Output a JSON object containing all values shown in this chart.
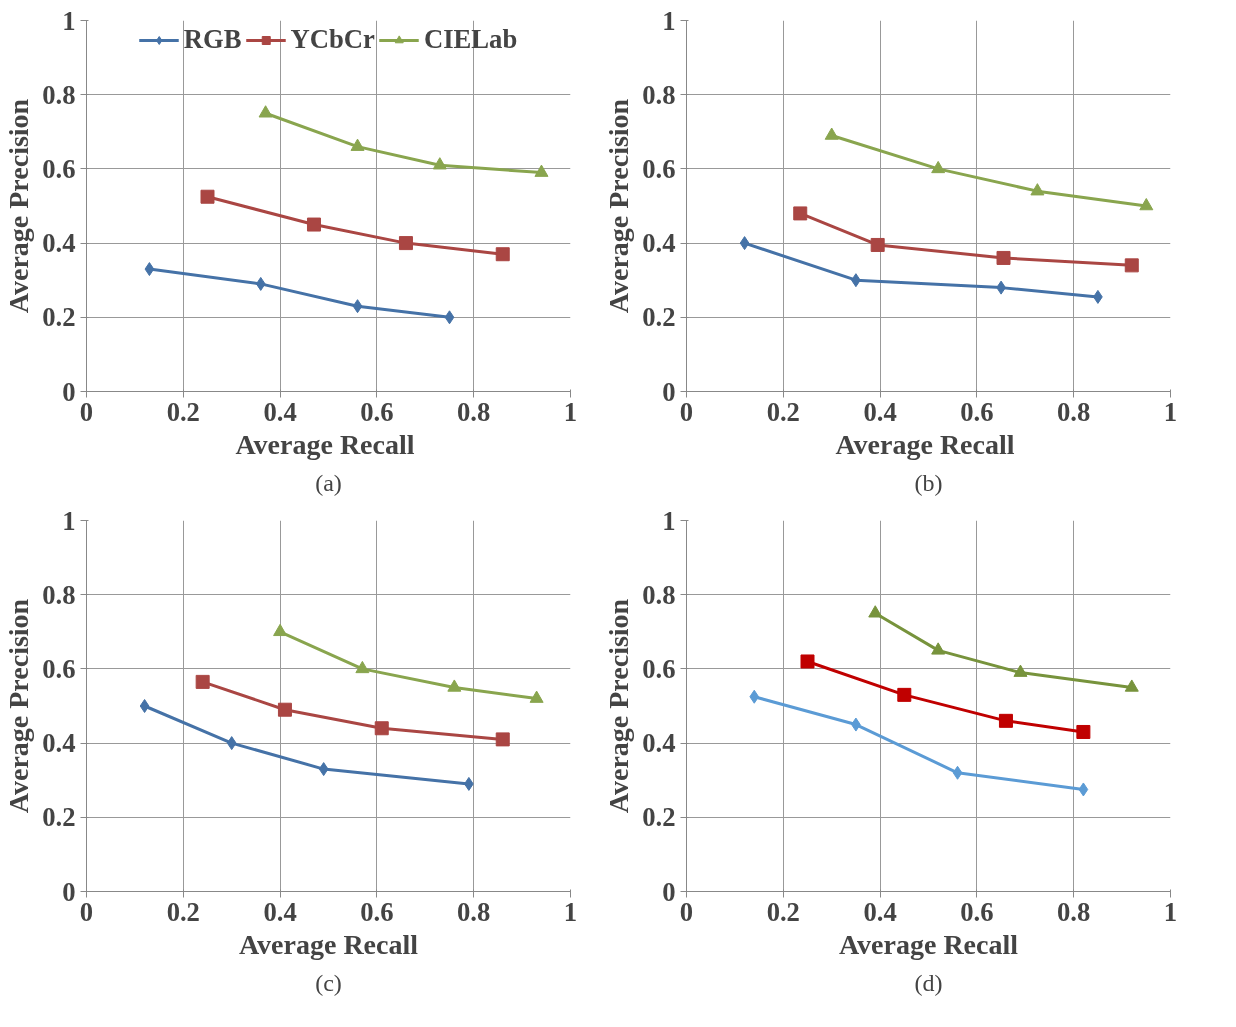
{
  "chart_data": [
    {
      "type": "line",
      "xlabel": "Average  Recall",
      "ylabel": "Average Precision",
      "xlim": [
        0,
        1
      ],
      "ylim": [
        0,
        1
      ],
      "xticks": [
        0,
        0.2,
        0.4,
        0.6,
        0.8,
        1
      ],
      "yticks": [
        0,
        0.2,
        0.4,
        0.6,
        0.8,
        1
      ],
      "grid": true,
      "legend": "top",
      "annotations": [
        "(a)"
      ],
      "series": [
        {
          "name": "RGB",
          "color": "#4572a7",
          "marker": "diamond",
          "x": [
            0.13,
            0.36,
            0.56,
            0.75
          ],
          "values": [
            0.33,
            0.29,
            0.23,
            0.2
          ]
        },
        {
          "name": "YCbCr",
          "color": "#aa4643",
          "marker": "square",
          "x": [
            0.25,
            0.47,
            0.66,
            0.86
          ],
          "values": [
            0.525,
            0.45,
            0.4,
            0.37
          ]
        },
        {
          "name": "CIELab",
          "color": "#89a54e",
          "marker": "triangle",
          "x": [
            0.37,
            0.56,
            0.73,
            0.94
          ],
          "values": [
            0.75,
            0.66,
            0.61,
            0.59
          ]
        }
      ]
    },
    {
      "type": "line",
      "xlabel": "Average  Recall",
      "ylabel": "Average Precision",
      "xlim": [
        0,
        1
      ],
      "ylim": [
        0,
        1
      ],
      "xticks": [
        0,
        0.2,
        0.4,
        0.6,
        0.8,
        1
      ],
      "yticks": [
        0,
        0.2,
        0.4,
        0.6,
        0.8,
        1
      ],
      "grid": true,
      "annotations": [
        "(b)"
      ],
      "series": [
        {
          "color": "#4572a7",
          "marker": "diamond",
          "x": [
            0.12,
            0.35,
            0.65,
            0.85
          ],
          "values": [
            0.4,
            0.3,
            0.28,
            0.255
          ]
        },
        {
          "color": "#aa4643",
          "marker": "square",
          "x": [
            0.235,
            0.395,
            0.655,
            0.92
          ],
          "values": [
            0.48,
            0.395,
            0.36,
            0.34
          ]
        },
        {
          "color": "#89a54e",
          "marker": "triangle",
          "x": [
            0.3,
            0.52,
            0.725,
            0.95
          ],
          "values": [
            0.69,
            0.6,
            0.54,
            0.5
          ]
        }
      ]
    },
    {
      "type": "line",
      "xlabel": "Average Recall",
      "ylabel": "Average Precision",
      "xlim": [
        0,
        1
      ],
      "ylim": [
        0,
        1
      ],
      "xticks": [
        0,
        0.2,
        0.4,
        0.6,
        0.8,
        1
      ],
      "yticks": [
        0,
        0.2,
        0.4,
        0.6,
        0.8,
        1
      ],
      "grid": true,
      "annotations": [
        "(c)"
      ],
      "series": [
        {
          "color": "#4572a7",
          "marker": "diamond",
          "x": [
            0.12,
            0.3,
            0.49,
            0.79
          ],
          "values": [
            0.5,
            0.4,
            0.33,
            0.29
          ]
        },
        {
          "color": "#aa4643",
          "marker": "square",
          "x": [
            0.24,
            0.41,
            0.61,
            0.86
          ],
          "values": [
            0.565,
            0.49,
            0.44,
            0.41
          ]
        },
        {
          "color": "#89a54e",
          "marker": "triangle",
          "x": [
            0.4,
            0.57,
            0.76,
            0.93
          ],
          "values": [
            0.7,
            0.6,
            0.55,
            0.52
          ]
        }
      ]
    },
    {
      "type": "line",
      "xlabel": "Average Recall",
      "ylabel": "Average Precision",
      "xlim": [
        0,
        1
      ],
      "ylim": [
        0,
        1
      ],
      "xticks": [
        0,
        0.2,
        0.4,
        0.6,
        0.8,
        1
      ],
      "yticks": [
        0,
        0.2,
        0.4,
        0.6,
        0.8,
        1
      ],
      "grid": true,
      "annotations": [
        "(d)"
      ],
      "series": [
        {
          "color": "#5b9bd5",
          "marker": "diamond",
          "x": [
            0.14,
            0.35,
            0.56,
            0.82
          ],
          "values": [
            0.525,
            0.45,
            0.32,
            0.275
          ]
        },
        {
          "color": "#c00000",
          "marker": "square",
          "x": [
            0.25,
            0.45,
            0.66,
            0.82
          ],
          "values": [
            0.62,
            0.53,
            0.46,
            0.43
          ]
        },
        {
          "color": "#77933c",
          "marker": "triangle",
          "x": [
            0.39,
            0.52,
            0.69,
            0.92
          ],
          "values": [
            0.75,
            0.65,
            0.59,
            0.55
          ]
        }
      ]
    }
  ]
}
